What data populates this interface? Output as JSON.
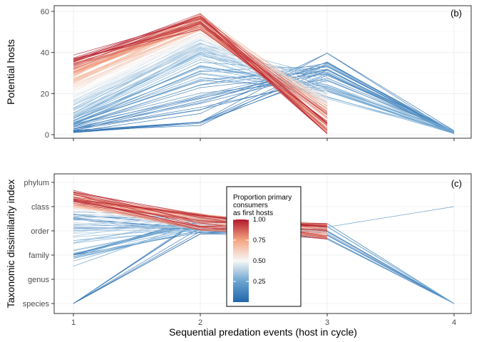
{
  "chart_data": [
    {
      "panel": "top",
      "type": "line",
      "panel_tag": "(b)",
      "ylabel": "Potential hosts",
      "x_ticks": [
        "1",
        "2",
        "3",
        "4"
      ],
      "y_ticks": [
        "0",
        "20",
        "40",
        "60"
      ],
      "ylim": [
        0,
        62
      ],
      "xlim": [
        1,
        4
      ],
      "grid": true,
      "series_summary": [
        {
          "proportion": 1.0,
          "values": [
            38,
            55,
            3,
            null
          ]
        },
        {
          "proportion": 0.75,
          "values": [
            30,
            56,
            8,
            null
          ]
        },
        {
          "proportion": 0.5,
          "values": [
            20,
            50,
            15,
            null
          ]
        },
        {
          "proportion": 0.25,
          "values": [
            8,
            38,
            25,
            1
          ]
        },
        {
          "proportion": 0.0,
          "values": [
            1,
            5,
            35,
            1
          ]
        }
      ],
      "line_count": 140
    },
    {
      "panel": "bottom",
      "type": "line",
      "panel_tag": "(c)",
      "ylabel": "Taxonomic dissimilarity index",
      "xlabel": "Sequential predation events (host in cycle)",
      "x_ticks": [
        "1",
        "2",
        "3",
        "4"
      ],
      "y_ticks": [
        "species",
        "genus",
        "family",
        "order",
        "class",
        "phylum"
      ],
      "ylim": [
        0,
        5
      ],
      "xlim": [
        1,
        4
      ],
      "grid": true,
      "series_summary": [
        {
          "proportion": 1.0,
          "values": [
            4.45,
            3.35,
            3.0,
            null
          ]
        },
        {
          "proportion": 0.5,
          "values": [
            4.1,
            3.4,
            3.0,
            null
          ]
        },
        {
          "proportion": 0.0,
          "values": [
            0,
            3.2,
            3.0,
            0
          ]
        }
      ],
      "line_count": 140,
      "legend": {
        "title_lines": [
          "Proportion primary",
          "consumers",
          "as first hosts"
        ],
        "ticks": [
          "1.00",
          "0.75",
          "0.50",
          "0.25"
        ],
        "tick_values": [
          1.0,
          0.75,
          0.5,
          0.25
        ],
        "color_low": "#2166ac",
        "color_mid": "#f7f7f7",
        "color_high": "#b2182b",
        "placement": "center"
      }
    }
  ]
}
